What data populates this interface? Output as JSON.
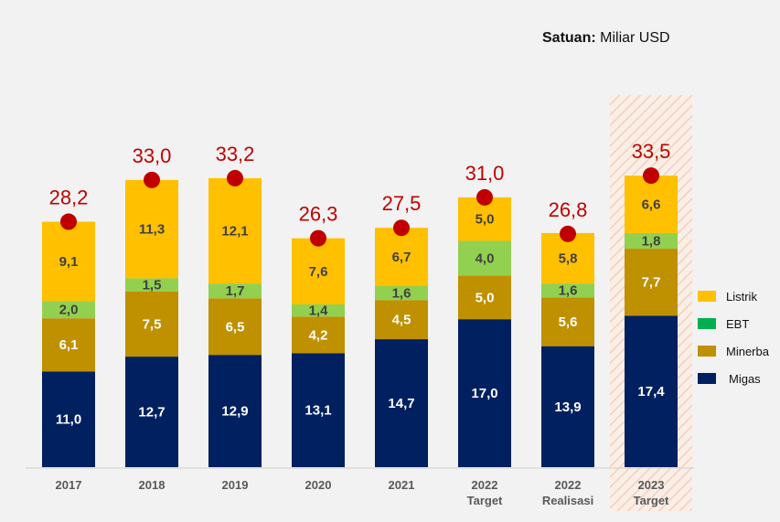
{
  "unit_note": {
    "label": "Satuan:",
    "value": "Miliar USD"
  },
  "chart_data": {
    "type": "bar",
    "stacked": true,
    "title": "",
    "xlabel": "",
    "ylabel": "",
    "ylim": [
      0,
      35
    ],
    "grid": false,
    "legend_position": "right",
    "categories": [
      [
        "2017"
      ],
      [
        "2018"
      ],
      [
        "2019"
      ],
      [
        "2020"
      ],
      [
        "2021"
      ],
      [
        "2022",
        "Target"
      ],
      [
        "2022",
        "Realisasi"
      ],
      [
        "2023",
        "Target"
      ]
    ],
    "highlighted_category_index": 7,
    "series": [
      {
        "name": "Migas",
        "color": "#002060",
        "label_color": "#FFFFFF",
        "values": [
          11.0,
          12.7,
          12.9,
          13.1,
          14.7,
          17.0,
          13.9,
          17.4
        ],
        "labels": [
          "11,0",
          "12,7",
          "12,9",
          "13,1",
          "14,7",
          "17,0",
          "13,9",
          "17,4"
        ]
      },
      {
        "name": "Minerba",
        "color": "#BF9000",
        "label_color": "#FFFFFF",
        "values": [
          6.1,
          7.5,
          6.5,
          4.2,
          4.5,
          5.0,
          5.6,
          7.7
        ],
        "labels": [
          "6,1",
          "7,5",
          "6,5",
          "4,2",
          "4,5",
          "5,0",
          "5,6",
          "7,7"
        ]
      },
      {
        "name": "EBT",
        "color": "#92D050",
        "legend_color": "#00B050",
        "label_color": "#404040",
        "values": [
          2.0,
          1.5,
          1.7,
          1.4,
          1.6,
          4.0,
          1.6,
          1.8
        ],
        "labels": [
          "2,0",
          "1,5",
          "1,7",
          "1,4",
          "1,6",
          "4,0",
          "1,6",
          "1,8"
        ]
      },
      {
        "name": "Listrik",
        "color": "#FFC000",
        "label_color": "#404040",
        "values": [
          9.1,
          11.3,
          12.1,
          7.6,
          6.7,
          5.0,
          5.8,
          6.6
        ],
        "labels": [
          "9,1",
          "11,3",
          "12,1",
          "7,6",
          "6,7",
          "5,0",
          "5,8",
          "6,6"
        ]
      }
    ],
    "totals": [
      28.2,
      33.0,
      33.2,
      26.3,
      27.5,
      31.0,
      26.8,
      33.5
    ],
    "total_labels": [
      "28,2",
      "33,0",
      "33,2",
      "26,3",
      "27,5",
      "31,0",
      "26,8",
      "33,5"
    ],
    "total_marker_color": "#C00000",
    "legend_order": [
      "Listrik",
      "EBT",
      "Minerba",
      "Migas"
    ]
  }
}
